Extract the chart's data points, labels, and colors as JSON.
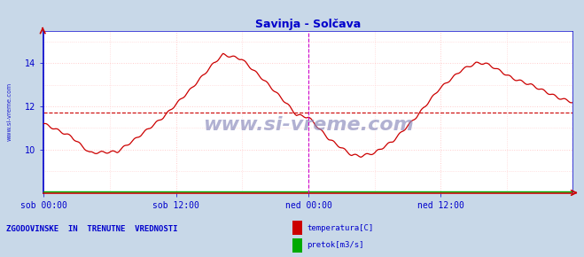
{
  "title": "Savinja - Solčava",
  "title_color": "#0000cc",
  "fig_bg_color": "#c8d8e8",
  "plot_bg_color": "#ffffff",
  "line_color": "#cc0000",
  "avg_line_color": "#cc0000",
  "avg_line_value": 11.7,
  "pretok_color": "#00aa00",
  "grid_color": "#ffcccc",
  "watermark": "www.si-vreme.com",
  "watermark_color": "#8888bb",
  "ylabel_text": "www.si-vreme.com",
  "ylabel_color": "#0000cc",
  "x_tick_labels": [
    "sob 00:00",
    "sob 12:00",
    "ned 00:00",
    "ned 12:00"
  ],
  "x_tick_positions": [
    0,
    144,
    288,
    432
  ],
  "ylim": [
    8.0,
    15.5
  ],
  "yticks": [
    10,
    12,
    14
  ],
  "xlim": [
    0,
    575
  ],
  "vline_positions": [
    288,
    575
  ],
  "vline_color": "#cc00cc",
  "legend_label_temp": "temperatura[C]",
  "legend_label_pretok": "pretok[m3/s]",
  "legend_color_temp": "#cc0000",
  "legend_color_pretok": "#00aa00",
  "footer_text": "ZGODOVINSKE  IN  TRENUTNE  VREDNOSTI",
  "footer_color": "#0000cc",
  "arrow_color": "#cc0000",
  "axis_color": "#0000cc",
  "n_points": 576
}
